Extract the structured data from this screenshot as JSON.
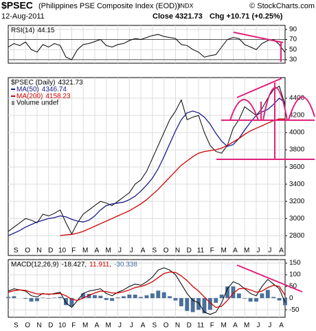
{
  "header": {
    "symbol": "$PSEC",
    "name": "(Philippines PSE Composite Index (EOD))",
    "exchange": "INDX",
    "credit": "© StockCharts.com",
    "date": "12-Aug-2011",
    "close": "Close 4321.73",
    "change": "Chg +10.71 (+0.25%)"
  },
  "chart_data": [
    {
      "type": "line",
      "xlim": [
        0,
        48
      ],
      "ylim": [
        23,
        98
      ],
      "yticks": [
        30,
        50,
        70,
        90
      ],
      "reference_lines": [
        30,
        70
      ],
      "grid": true,
      "series": [
        {
          "name": "RSI(14)",
          "color": "#000000",
          "values": [
            55,
            62,
            58,
            65,
            50,
            45,
            60,
            55,
            62,
            58,
            35,
            30,
            50,
            60,
            62,
            66,
            70,
            58,
            55,
            60,
            62,
            68,
            72,
            70,
            74,
            78,
            80,
            76,
            74,
            72,
            60,
            58,
            50,
            45,
            35,
            38,
            40,
            55,
            70,
            74,
            72,
            60,
            55,
            50,
            62,
            68,
            70,
            60,
            44.15
          ]
        }
      ]
    },
    {
      "type": "line",
      "xlim": [
        0,
        48
      ],
      "ylim": [
        2570,
        4640
      ],
      "yticks": [
        2800,
        3000,
        3200,
        3400,
        3600,
        3800,
        4000,
        4200,
        4400
      ],
      "xticks": [
        {
          "value": 1,
          "label": "S"
        },
        {
          "value": 3,
          "label": "O"
        },
        {
          "value": 5,
          "label": "N"
        },
        {
          "value": 7,
          "label": "D"
        },
        {
          "value": 9,
          "label": "10"
        },
        {
          "value": 11,
          "label": "F"
        },
        {
          "value": 13,
          "label": "M"
        },
        {
          "value": 15,
          "label": "A"
        },
        {
          "value": 17,
          "label": "M"
        },
        {
          "value": 19,
          "label": "J"
        },
        {
          "value": 21,
          "label": "J"
        },
        {
          "value": 23,
          "label": "A"
        },
        {
          "value": 25,
          "label": "S"
        },
        {
          "value": 27,
          "label": "O"
        },
        {
          "value": 29,
          "label": "N"
        },
        {
          "value": 31,
          "label": "D"
        },
        {
          "value": 33,
          "label": "11"
        },
        {
          "value": 35,
          "label": "F"
        },
        {
          "value": 37,
          "label": "M"
        },
        {
          "value": 39,
          "label": "A"
        },
        {
          "value": 41,
          "label": "M"
        },
        {
          "value": 43,
          "label": "J"
        },
        {
          "value": 45,
          "label": "J"
        },
        {
          "value": 47,
          "label": "A"
        }
      ],
      "grid": true,
      "volume_label": "Volume undef",
      "series": [
        {
          "name": "$PSEC (Daily)",
          "color": "#000000",
          "values": [
            2850,
            2900,
            2950,
            3000,
            2980,
            2950,
            3050,
            3030,
            3060,
            3100,
            2950,
            2820,
            2950,
            3050,
            3100,
            3150,
            3200,
            3180,
            3150,
            3200,
            3250,
            3300,
            3400,
            3450,
            3550,
            3700,
            3850,
            4000,
            4150,
            4250,
            4380,
            4150,
            4180,
            4200,
            4000,
            3850,
            3780,
            3760,
            3850,
            4050,
            4150,
            4300,
            4250,
            4200,
            4280,
            4400,
            4500,
            4540,
            4321.73
          ]
        },
        {
          "name": "MA(50)",
          "color": "#1a1a8c",
          "values": [
            2800,
            2830,
            2860,
            2900,
            2930,
            2960,
            2980,
            3000,
            3010,
            3030,
            3020,
            2990,
            2970,
            2960,
            2980,
            3030,
            3100,
            3150,
            3170,
            3180,
            3190,
            3220,
            3260,
            3320,
            3390,
            3470,
            3580,
            3720,
            3870,
            4020,
            4150,
            4230,
            4250,
            4230,
            4180,
            4100,
            3990,
            3900,
            3840,
            3860,
            3930,
            4030,
            4120,
            4200,
            4240,
            4270,
            4330,
            4400,
            4346.74
          ]
        },
        {
          "name": "MA(200)",
          "color": "#cc0000",
          "values": [
            null,
            null,
            null,
            null,
            null,
            null,
            null,
            null,
            null,
            2800,
            2810,
            2815,
            2830,
            2850,
            2880,
            2910,
            2940,
            2970,
            3000,
            3030,
            3060,
            3090,
            3130,
            3170,
            3220,
            3280,
            3340,
            3410,
            3480,
            3550,
            3620,
            3670,
            3720,
            3760,
            3780,
            3790,
            3800,
            3820,
            3850,
            3890,
            3930,
            3980,
            4020,
            4050,
            4080,
            4110,
            4140,
            4160,
            4158.23
          ]
        }
      ]
    },
    {
      "type": "line",
      "xlim": [
        0,
        48
      ],
      "ylim": [
        -82,
        165
      ],
      "yticks": [
        -50,
        0,
        50,
        100,
        150
      ],
      "xticks": [
        {
          "value": 1,
          "label": "S"
        },
        {
          "value": 3,
          "label": "O"
        },
        {
          "value": 5,
          "label": "N"
        },
        {
          "value": 7,
          "label": "D"
        },
        {
          "value": 9,
          "label": "10"
        },
        {
          "value": 11,
          "label": "F"
        },
        {
          "value": 13,
          "label": "M"
        },
        {
          "value": 15,
          "label": "A"
        },
        {
          "value": 17,
          "label": "M"
        },
        {
          "value": 19,
          "label": "J"
        },
        {
          "value": 21,
          "label": "J"
        },
        {
          "value": 23,
          "label": "A"
        },
        {
          "value": 25,
          "label": "S"
        },
        {
          "value": 27,
          "label": "O"
        },
        {
          "value": 29,
          "label": "N"
        },
        {
          "value": 31,
          "label": "D"
        },
        {
          "value": 33,
          "label": "11"
        },
        {
          "value": 35,
          "label": "F"
        },
        {
          "value": 37,
          "label": "M"
        },
        {
          "value": 39,
          "label": "A"
        },
        {
          "value": 41,
          "label": "M"
        },
        {
          "value": 43,
          "label": "J"
        },
        {
          "value": 45,
          "label": "J"
        },
        {
          "value": 47,
          "label": "A"
        }
      ],
      "grid": true,
      "legend_separator": ",",
      "series": [
        {
          "name": "MACD(12,26,9)",
          "color": "#000000",
          "values": [
            30,
            40,
            35,
            30,
            10,
            5,
            20,
            15,
            20,
            25,
            -20,
            -40,
            -10,
            20,
            30,
            35,
            40,
            20,
            10,
            25,
            35,
            50,
            60,
            55,
            70,
            90,
            120,
            130,
            120,
            100,
            60,
            20,
            -10,
            -20,
            -60,
            -70,
            -60,
            -20,
            40,
            70,
            60,
            40,
            20,
            10,
            50,
            80,
            60,
            40,
            -18.427
          ]
        },
        {
          "color": "#cc0000",
          "values": [
            25,
            32,
            35,
            33,
            25,
            18,
            18,
            17,
            18,
            20,
            10,
            -5,
            -10,
            0,
            12,
            22,
            30,
            28,
            22,
            22,
            27,
            35,
            45,
            50,
            58,
            70,
            88,
            105,
            112,
            110,
            95,
            75,
            50,
            30,
            5,
            -20,
            -40,
            -35,
            -10,
            20,
            40,
            42,
            35,
            25,
            30,
            45,
            55,
            50,
            11.911
          ]
        },
        {
          "type": "bar",
          "color": "#4a6f9c",
          "values": [
            5,
            8,
            0,
            -3,
            -15,
            -13,
            2,
            -2,
            2,
            5,
            -30,
            -35,
            0,
            20,
            18,
            13,
            10,
            -8,
            -12,
            3,
            8,
            15,
            15,
            5,
            12,
            20,
            32,
            25,
            8,
            -10,
            -35,
            -55,
            -60,
            -50,
            -65,
            -50,
            -20,
            15,
            50,
            50,
            20,
            -2,
            -15,
            -15,
            20,
            35,
            5,
            -10,
            -30.338
          ]
        }
      ]
    }
  ]
}
